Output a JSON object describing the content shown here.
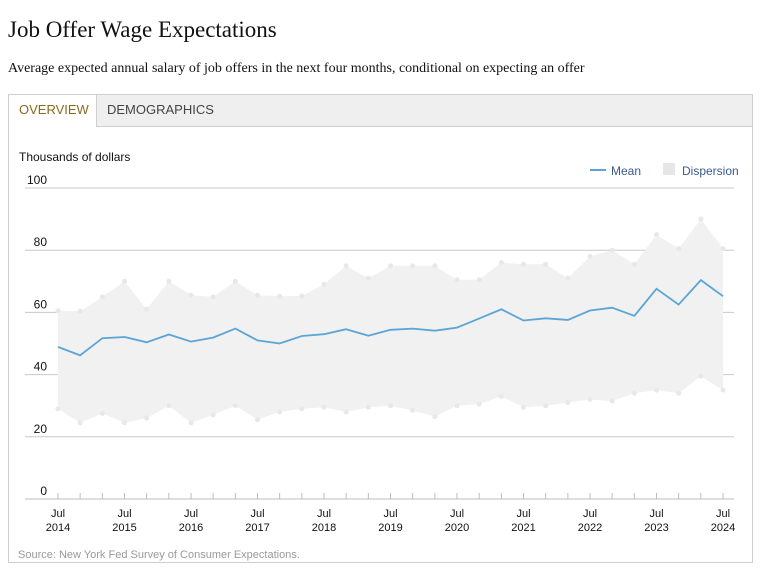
{
  "header": {
    "title": "Job Offer Wage Expectations",
    "subtitle": "Average expected annual salary of job offers in the next four months, conditional on expecting an offer"
  },
  "tabs": [
    {
      "label": "OVERVIEW",
      "active": true
    },
    {
      "label": "DEMOGRAPHICS",
      "active": false
    }
  ],
  "source": "Source: New York Fed Survey of Consumer Expectations.",
  "colors": {
    "mean_line": "#5aa5d6",
    "dispersion_fill": "#f1f1f1",
    "active_tab_text": "#8a6a1e",
    "legend_text": "#3a5a8c"
  },
  "chart_data": {
    "type": "line",
    "ylabel": "Thousands of dollars",
    "ylim": [
      0,
      100
    ],
    "yticks": [
      0,
      20,
      40,
      60,
      80,
      100
    ],
    "grid": true,
    "legend_placement": "top-right",
    "legend": [
      {
        "label": "Mean",
        "kind": "line"
      },
      {
        "label": "Dispersion",
        "kind": "area"
      }
    ],
    "x_labels": [
      {
        "x": 2014.5,
        "line1": "Jul",
        "line2": "2014"
      },
      {
        "x": 2015.5,
        "line1": "Jul",
        "line2": "2015"
      },
      {
        "x": 2016.5,
        "line1": "Jul",
        "line2": "2016"
      },
      {
        "x": 2017.5,
        "line1": "Jul",
        "line2": "2017"
      },
      {
        "x": 2018.5,
        "line1": "Jul",
        "line2": "2018"
      },
      {
        "x": 2019.5,
        "line1": "Jul",
        "line2": "2019"
      },
      {
        "x": 2020.5,
        "line1": "Jul",
        "line2": "2020"
      },
      {
        "x": 2021.5,
        "line1": "Jul",
        "line2": "2021"
      },
      {
        "x": 2022.5,
        "line1": "Jul",
        "line2": "2022"
      },
      {
        "x": 2023.5,
        "line1": "Jul",
        "line2": "2023"
      },
      {
        "x": 2024.5,
        "line1": "Jul",
        "line2": "2024"
      }
    ],
    "x": [
      2014.5,
      2014.833,
      2015.167,
      2015.5,
      2015.833,
      2016.167,
      2016.5,
      2016.833,
      2017.167,
      2017.5,
      2017.833,
      2018.167,
      2018.5,
      2018.833,
      2019.167,
      2019.5,
      2019.833,
      2020.167,
      2020.5,
      2020.833,
      2021.167,
      2021.5,
      2021.833,
      2022.167,
      2022.5,
      2022.833,
      2023.167,
      2023.5,
      2023.833,
      2024.167,
      2024.5
    ],
    "series": [
      {
        "name": "Mean",
        "values": [
          48.9,
          46.2,
          51.7,
          52.1,
          50.4,
          52.9,
          50.6,
          51.9,
          54.8,
          51.0,
          50.0,
          52.4,
          53.0,
          54.6,
          52.5,
          54.4,
          54.8,
          54.1,
          55.1,
          58.0,
          61.0,
          57.4,
          58.1,
          57.6,
          60.6,
          61.5,
          58.9,
          67.6,
          62.5,
          70.4,
          65.2
        ]
      },
      {
        "name": "Dispersion",
        "upper": [
          60.5,
          60.4,
          65.0,
          70.0,
          61.0,
          70.0,
          65.6,
          65.0,
          70.0,
          65.5,
          65.2,
          65.3,
          69.0,
          75.0,
          71.0,
          75.0,
          75.0,
          75.0,
          70.5,
          70.5,
          76.0,
          75.5,
          75.5,
          71.0,
          78.0,
          80.0,
          75.5,
          85.0,
          80.5,
          90.0,
          80.5
        ],
        "lower": [
          29.0,
          24.5,
          27.5,
          24.5,
          26.0,
          30.0,
          24.5,
          27.0,
          30.0,
          25.5,
          28.0,
          29.0,
          29.5,
          28.0,
          29.5,
          30.0,
          28.5,
          26.5,
          30.0,
          30.5,
          33.0,
          29.5,
          30.0,
          31.0,
          32.0,
          31.5,
          34.0,
          35.0,
          34.0,
          39.5,
          35.0
        ]
      }
    ]
  }
}
